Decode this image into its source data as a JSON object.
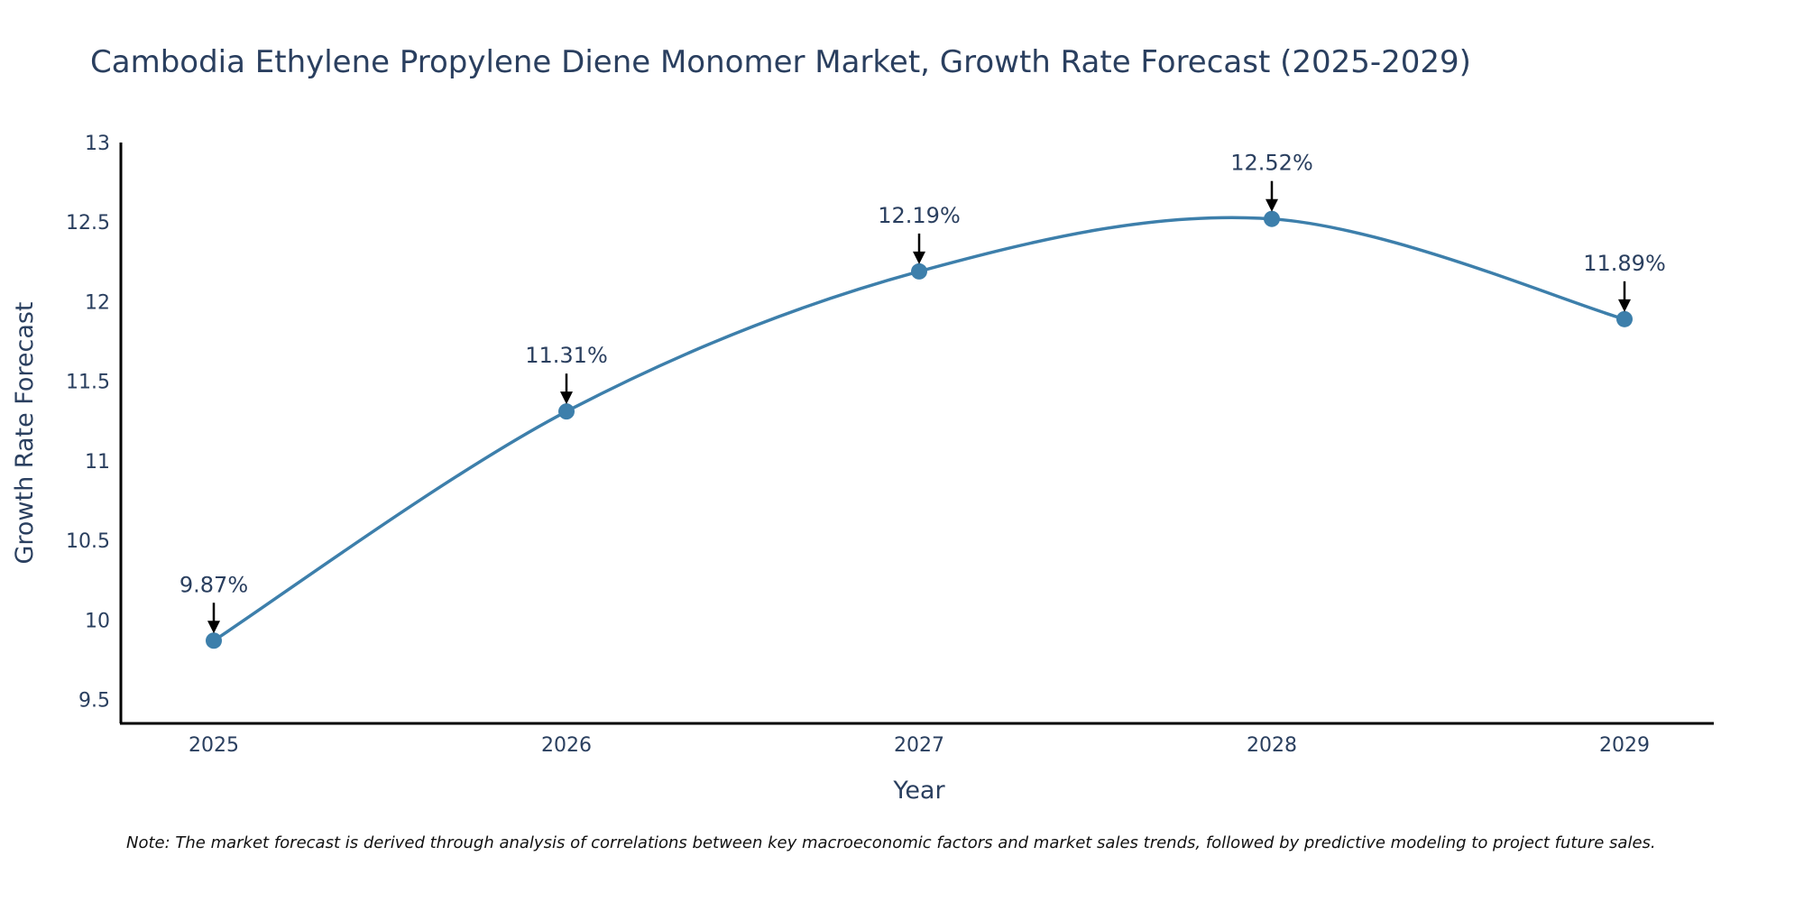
{
  "chart_data": {
    "type": "line",
    "title": "Cambodia Ethylene Propylene Diene Monomer Market, Growth Rate Forecast (2025-2029)",
    "xlabel": "Year",
    "ylabel": "Growth Rate Forecast",
    "categories": [
      "2025",
      "2026",
      "2027",
      "2028",
      "2029"
    ],
    "series": [
      {
        "name": "Growth Rate Forecast",
        "values": [
          9.87,
          11.31,
          12.19,
          12.52,
          11.89
        ]
      }
    ],
    "data_labels": [
      "9.87%",
      "11.31%",
      "12.19%",
      "12.52%",
      "11.89%"
    ],
    "ylim": [
      9.35,
      13
    ],
    "yticks": [
      "9.5",
      "10",
      "10.5",
      "11",
      "11.5",
      "12",
      "12.5",
      "13"
    ],
    "ytick_values": [
      9.5,
      10,
      10.5,
      11,
      11.5,
      12,
      12.5,
      13
    ],
    "line_color": "#3d7fab",
    "marker_color": "#3d7fab",
    "note": "Note: The market forecast is derived through analysis of correlations between key macroeconomic factors and market sales trends, followed by predictive modeling to project future sales."
  }
}
